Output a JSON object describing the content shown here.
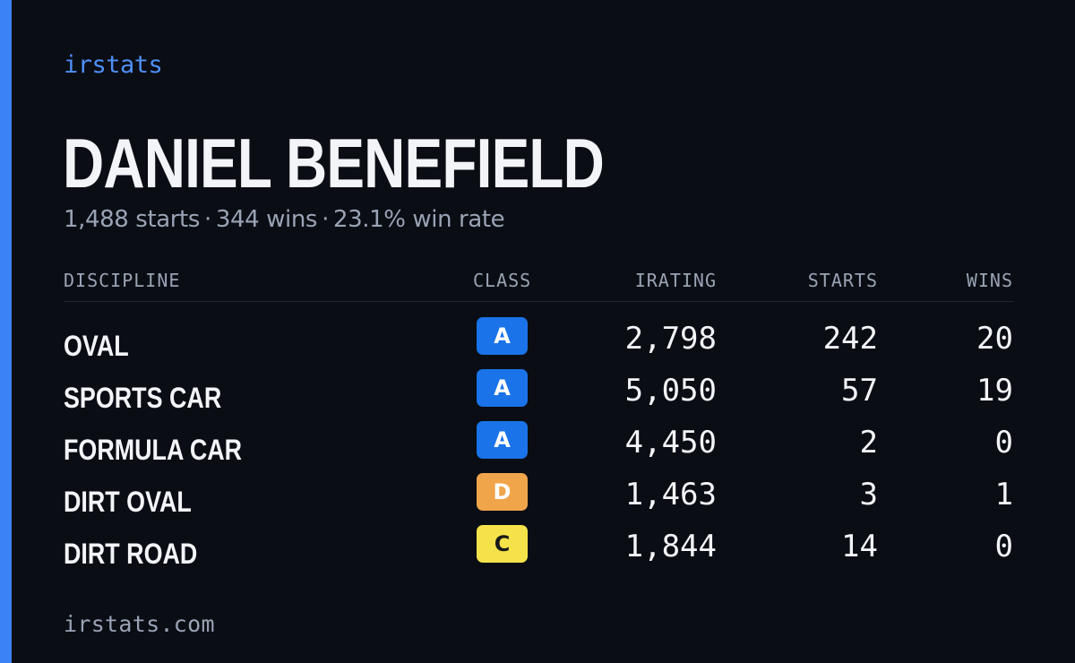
{
  "brand": "irstats",
  "driver": {
    "name": "DANIEL BENEFIELD"
  },
  "summary": {
    "starts": "1,488 starts",
    "wins": "344 wins",
    "win_rate": "23.1% win rate",
    "separator": "·"
  },
  "table": {
    "headers": {
      "discipline": "DISCIPLINE",
      "class": "CLASS",
      "irating": "IRATING",
      "starts": "STARTS",
      "wins": "WINS"
    },
    "rows": [
      {
        "discipline": "OVAL",
        "class": "A",
        "class_color": "#1a73e8",
        "class_text_color": "#ffffff",
        "irating": "2,798",
        "starts": "242",
        "wins": "20"
      },
      {
        "discipline": "SPORTS CAR",
        "class": "A",
        "class_color": "#1a73e8",
        "class_text_color": "#ffffff",
        "irating": "5,050",
        "starts": "57",
        "wins": "19"
      },
      {
        "discipline": "FORMULA CAR",
        "class": "A",
        "class_color": "#1a73e8",
        "class_text_color": "#ffffff",
        "irating": "4,450",
        "starts": "2",
        "wins": "0"
      },
      {
        "discipline": "DIRT OVAL",
        "class": "D",
        "class_color": "#f0a54a",
        "class_text_color": "#ffffff",
        "irating": "1,463",
        "starts": "3",
        "wins": "1"
      },
      {
        "discipline": "DIRT ROAD",
        "class": "C",
        "class_color": "#f5e24a",
        "class_text_color": "#1a1a1a",
        "irating": "1,844",
        "starts": "14",
        "wins": "0"
      }
    ]
  },
  "footer": {
    "url": "irstats.com"
  },
  "colors": {
    "accent": "#3b82f6",
    "background": "#0a0d14"
  }
}
